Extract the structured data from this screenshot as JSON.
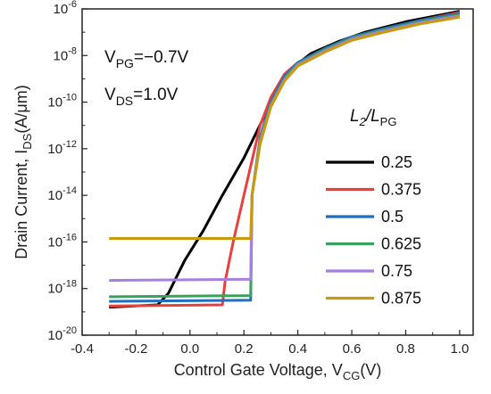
{
  "chart_data": {
    "type": "line",
    "xlabel": "Control Gate Voltage, V",
    "xlabel_sub": "CG",
    "xlabel_suffix": "(V)",
    "ylabel": "Drain Current, I",
    "ylabel_sub": "DS",
    "ylabel_suffix": "(A/μm)",
    "xlim": [
      -0.4,
      1.05
    ],
    "ylim_log10": [
      -20,
      -6
    ],
    "y_scale": "log",
    "x_ticks": [
      "-0.4",
      "-0.2",
      "0.0",
      "0.2",
      "0.4",
      "0.6",
      "0.8",
      "1.0"
    ],
    "x_tick_values": [
      -0.4,
      -0.2,
      0.0,
      0.2,
      0.4,
      0.6,
      0.8,
      1.0
    ],
    "y_tick_exponents": [
      -20,
      -18,
      -16,
      -14,
      -12,
      -10,
      -8,
      -6
    ],
    "annotations": [
      {
        "base": "V",
        "sub": "PG",
        "rest": "=−0.7V"
      },
      {
        "base": "V",
        "sub": "DS",
        "rest": "=1.0V"
      }
    ],
    "legend": {
      "title_main": "L",
      "title_sub": "2",
      "title_sep": "/L",
      "title_sub2": "PG",
      "placement": "right"
    },
    "series": [
      {
        "name": "0.25",
        "color": "#000000",
        "x": [
          -0.3,
          -0.12,
          -0.08,
          -0.02,
          0.05,
          0.12,
          0.2,
          0.28,
          0.36,
          0.45,
          0.55,
          0.65,
          0.8,
          1.0
        ],
        "y": [
          -18.8,
          -18.7,
          -18.2,
          -16.8,
          -15.5,
          -14.0,
          -12.4,
          -10.5,
          -8.7,
          -7.9,
          -7.4,
          -7.0,
          -6.55,
          -6.1
        ]
      },
      {
        "name": "0.375",
        "color": "#e8413c",
        "x": [
          -0.3,
          0.12,
          0.13,
          0.16,
          0.2,
          0.23,
          0.26,
          0.3,
          0.35,
          0.4,
          0.5,
          0.6,
          0.7,
          0.85,
          1.0
        ],
        "y": [
          -18.75,
          -18.7,
          -17.7,
          -16.0,
          -14.0,
          -12.5,
          -11.0,
          -9.8,
          -8.8,
          -8.3,
          -7.7,
          -7.2,
          -6.9,
          -6.5,
          -6.15
        ]
      },
      {
        "name": "0.5",
        "color": "#1f6fc0",
        "x": [
          -0.3,
          0.225,
          0.23,
          0.26,
          0.3,
          0.35,
          0.4,
          0.5,
          0.6,
          0.7,
          0.85,
          1.0
        ],
        "y": [
          -18.55,
          -18.5,
          -14.0,
          -11.5,
          -10.0,
          -8.9,
          -8.3,
          -7.7,
          -7.2,
          -6.9,
          -6.5,
          -6.2
        ]
      },
      {
        "name": "0.625",
        "color": "#3aa25e",
        "x": [
          -0.3,
          0.225,
          0.23,
          0.26,
          0.3,
          0.35,
          0.4,
          0.5,
          0.6,
          0.7,
          0.85,
          1.0
        ],
        "y": [
          -18.35,
          -18.3,
          -14.0,
          -11.6,
          -10.1,
          -9.0,
          -8.35,
          -7.75,
          -7.25,
          -6.95,
          -6.55,
          -6.25
        ]
      },
      {
        "name": "0.75",
        "color": "#a77fe0",
        "x": [
          -0.3,
          0.225,
          0.23,
          0.26,
          0.3,
          0.35,
          0.4,
          0.5,
          0.6,
          0.7,
          0.85,
          1.0
        ],
        "y": [
          -17.65,
          -17.6,
          -14.0,
          -11.7,
          -10.15,
          -9.05,
          -8.4,
          -7.8,
          -7.3,
          -7.0,
          -6.6,
          -6.3
        ]
      },
      {
        "name": "0.875",
        "color": "#c99a0e",
        "x": [
          -0.3,
          0.225,
          0.23,
          0.26,
          0.3,
          0.35,
          0.4,
          0.5,
          0.6,
          0.7,
          0.85,
          1.0
        ],
        "y": [
          -15.85,
          -15.85,
          -14.0,
          -11.8,
          -10.2,
          -9.1,
          -8.45,
          -7.85,
          -7.35,
          -7.05,
          -6.65,
          -6.35
        ]
      }
    ]
  }
}
